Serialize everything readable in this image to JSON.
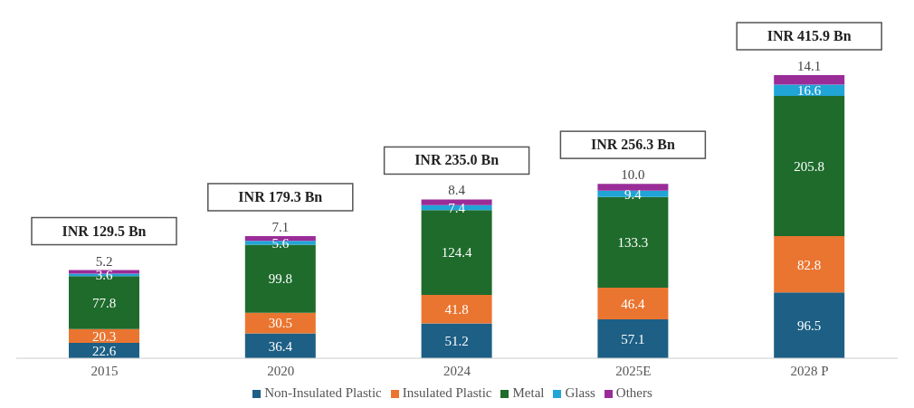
{
  "chart_data": {
    "type": "bar",
    "stacked": true,
    "categories": [
      "2015",
      "2020",
      "2024",
      "2025E",
      "2028 P"
    ],
    "series": [
      {
        "name": "Non-Insulated Plastic",
        "color": "#1d5f85",
        "values": [
          22.6,
          36.4,
          51.2,
          57.1,
          96.5
        ],
        "value_labels": [
          "22.6",
          "36.4",
          "51.2",
          "57.1",
          "96.5"
        ]
      },
      {
        "name": "Insulated Plastic",
        "color": "#ea7530",
        "values": [
          20.3,
          30.5,
          41.8,
          46.4,
          82.8
        ],
        "value_labels": [
          "20.3",
          "30.5",
          "41.8",
          "46.4",
          "82.8"
        ]
      },
      {
        "name": "Metal",
        "color": "#1e6b2c",
        "values": [
          77.8,
          99.8,
          124.4,
          133.3,
          205.8
        ],
        "value_labels": [
          "77.8",
          "99.8",
          "124.4",
          "133.3",
          "205.8"
        ]
      },
      {
        "name": "Glass",
        "color": "#21a4d6",
        "values": [
          3.6,
          5.6,
          7.4,
          9.4,
          16.6
        ],
        "value_labels": [
          "3.6",
          "5.6",
          "7.4",
          "9.4",
          "16.6"
        ]
      },
      {
        "name": "Others",
        "color": "#9a2c98",
        "values": [
          5.2,
          7.1,
          8.4,
          10.0,
          14.1
        ],
        "value_labels": [
          "5.2",
          "7.1",
          "8.4",
          "10.0",
          "14.1"
        ]
      }
    ],
    "totals": [
      "INR 129.5 Bn",
      "INR 179.3 Bn",
      "INR 235.0 Bn",
      "INR 256.3 Bn",
      "INR 415.9 Bn"
    ],
    "legend": "bottom",
    "grid": false
  }
}
